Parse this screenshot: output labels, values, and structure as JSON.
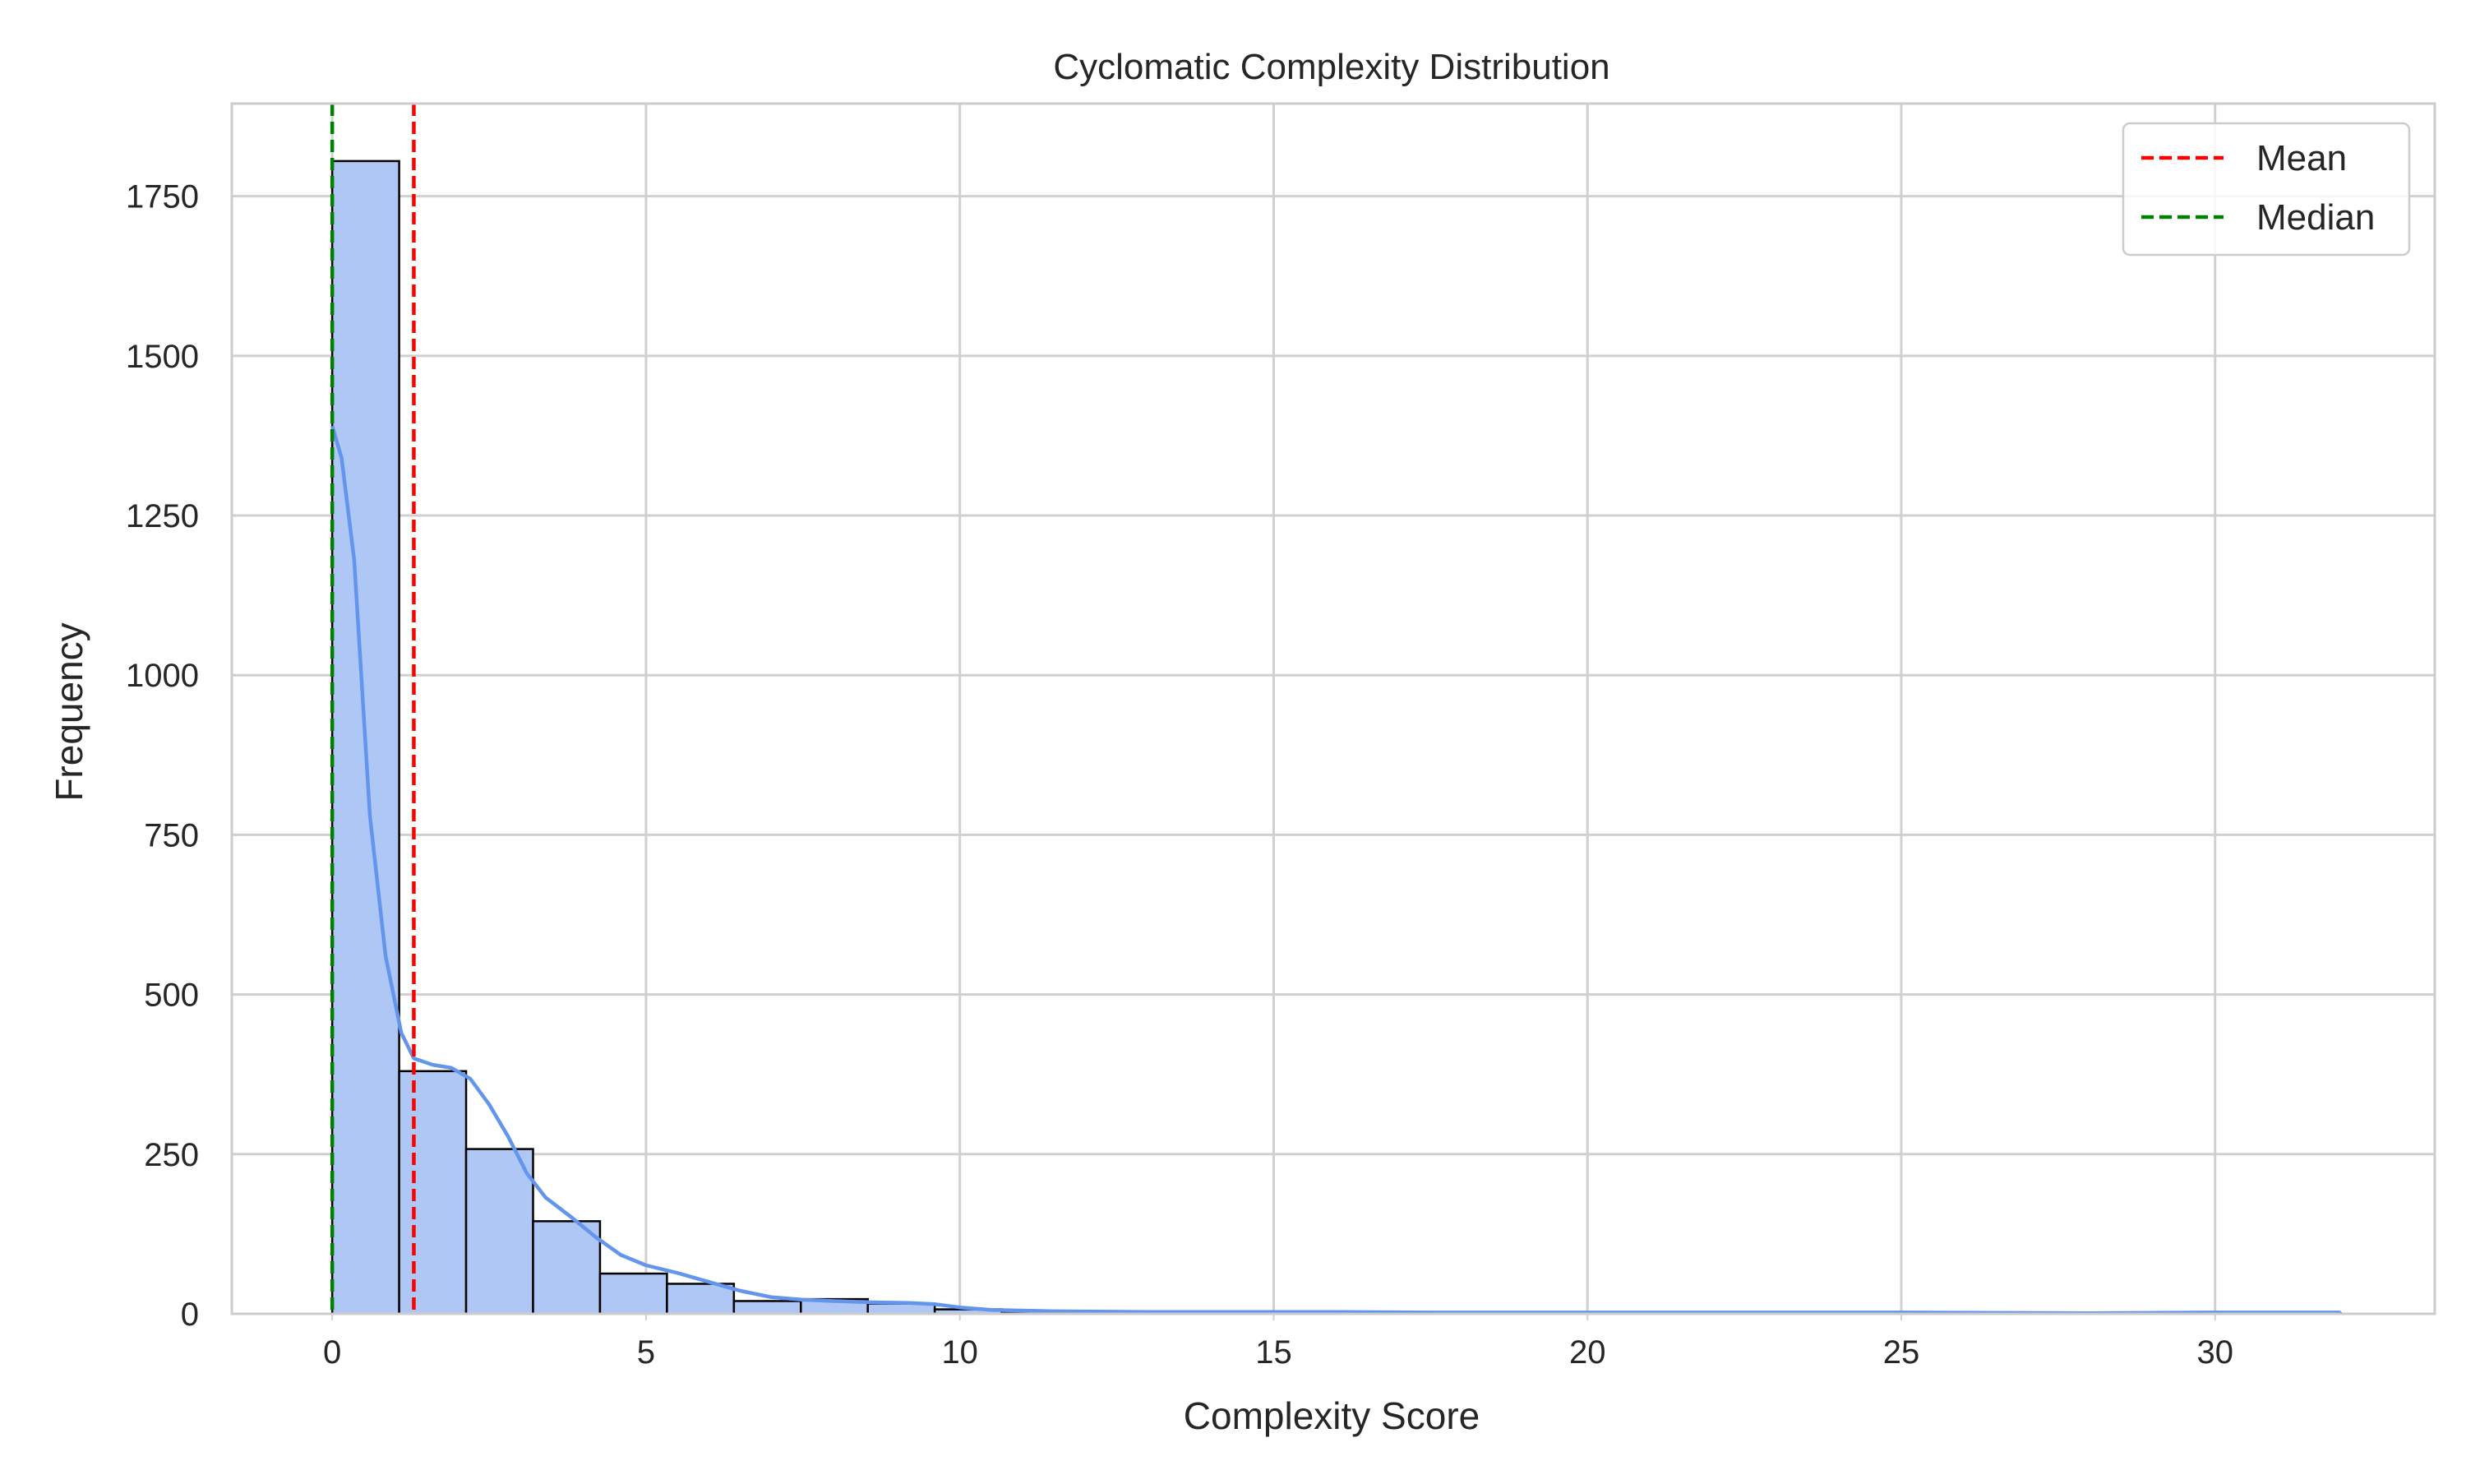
{
  "chart_data": {
    "type": "bar",
    "title": "Cyclomatic Complexity Distribution",
    "xlabel": "Complexity Score",
    "ylabel": "Frequency",
    "xlim": [
      -1.6,
      33.5
    ],
    "ylim": [
      0,
      1895
    ],
    "xticks": [
      0,
      5,
      10,
      15,
      20,
      25,
      30
    ],
    "yticks": [
      0,
      250,
      500,
      750,
      1000,
      1250,
      1500,
      1750
    ],
    "grid": true,
    "legend_position": "top-right",
    "bins": {
      "edges": [
        0,
        1.0667,
        2.1333,
        3.2,
        4.2667,
        5.3333,
        6.4,
        7.4667,
        8.5333,
        9.6,
        10.6667,
        11.7333,
        12.8,
        13.8667,
        14.9333,
        16.0,
        17.0667,
        18.1333,
        19.2,
        20.2667,
        21.3333,
        22.4,
        23.4667,
        24.5333,
        25.6,
        26.6667,
        27.7333,
        28.8,
        29.8667,
        30.9333,
        32.0
      ],
      "counts": [
        1805,
        380,
        258,
        145,
        63,
        47,
        20,
        23,
        16,
        7,
        3,
        2,
        2,
        1,
        2,
        1,
        0,
        0,
        0,
        0,
        0,
        0,
        0,
        0,
        0,
        0,
        0,
        0,
        0,
        1
      ],
      "fill": "#aec7f4",
      "edge": "#000000"
    },
    "kde": {
      "color": "#6495ed",
      "points": [
        [
          0,
          1390
        ],
        [
          0.15,
          1340
        ],
        [
          0.35,
          1180
        ],
        [
          0.6,
          780
        ],
        [
          0.85,
          560
        ],
        [
          1.1,
          440
        ],
        [
          1.3,
          400
        ],
        [
          1.6,
          390
        ],
        [
          1.9,
          385
        ],
        [
          2.2,
          368
        ],
        [
          2.5,
          328
        ],
        [
          2.8,
          278
        ],
        [
          3.1,
          220
        ],
        [
          3.4,
          182
        ],
        [
          3.8,
          152
        ],
        [
          4.2,
          120
        ],
        [
          4.6,
          92
        ],
        [
          5.0,
          76
        ],
        [
          5.5,
          64
        ],
        [
          6.0,
          50
        ],
        [
          6.5,
          36
        ],
        [
          7.0,
          26
        ],
        [
          7.5,
          22
        ],
        [
          8.0,
          20
        ],
        [
          8.6,
          18
        ],
        [
          9.2,
          17
        ],
        [
          9.6,
          15
        ],
        [
          10.0,
          10
        ],
        [
          10.5,
          6
        ],
        [
          11.5,
          4
        ],
        [
          13.0,
          3
        ],
        [
          15.0,
          3
        ],
        [
          16.0,
          3
        ],
        [
          17.5,
          2
        ],
        [
          20.0,
          2
        ],
        [
          25.0,
          2
        ],
        [
          28.0,
          1
        ],
        [
          30.0,
          2
        ],
        [
          32.0,
          2
        ]
      ]
    },
    "reference_lines": [
      {
        "name": "Mean",
        "x": 1.3,
        "color": "#ff0000"
      },
      {
        "name": "Median",
        "x": 0,
        "color": "#008000"
      }
    ]
  }
}
